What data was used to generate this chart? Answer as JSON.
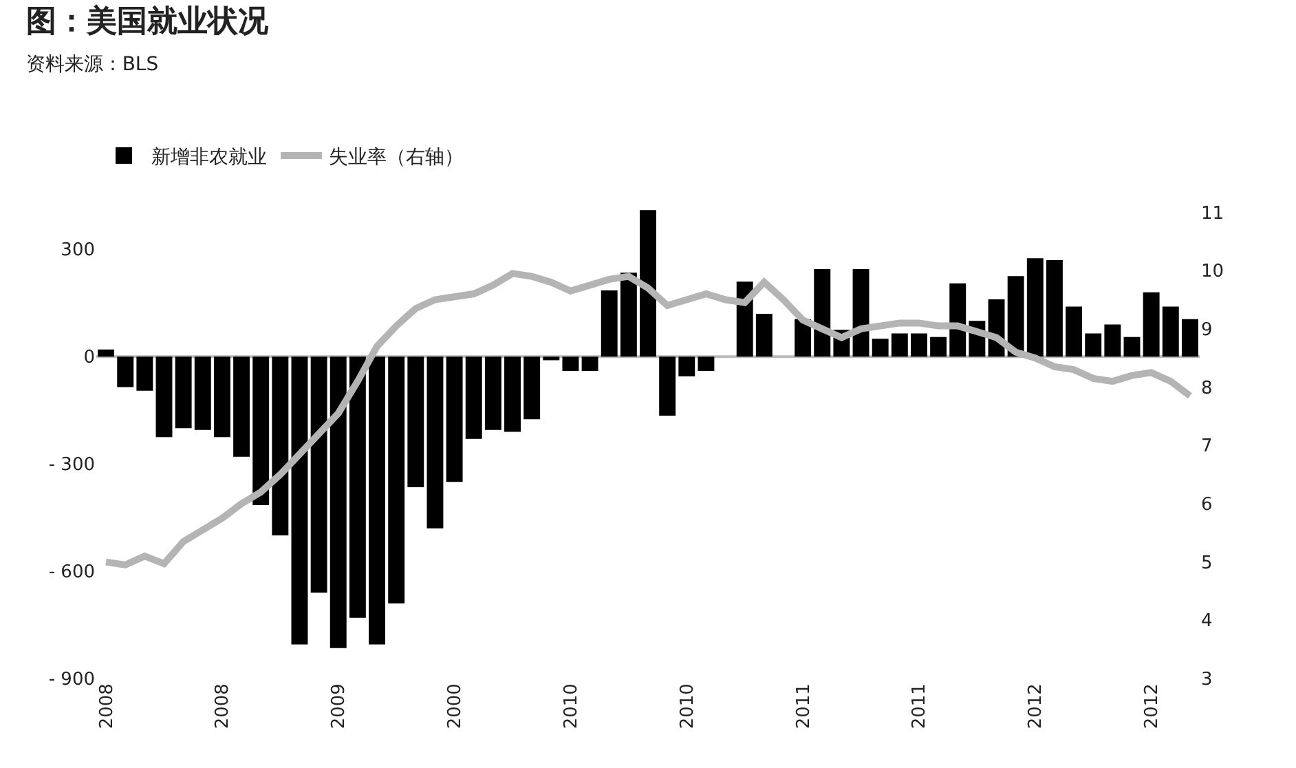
{
  "chart_data": {
    "type": "bar",
    "title": "图：美国就业状况",
    "subtitle": "资料来源：BLS",
    "categories": [
      "2008",
      null,
      null,
      null,
      null,
      null,
      "2008",
      null,
      null,
      null,
      null,
      null,
      "2009",
      null,
      null,
      null,
      null,
      null,
      "2000",
      null,
      null,
      null,
      null,
      null,
      "2010",
      null,
      null,
      null,
      null,
      null,
      "2010",
      null,
      null,
      null,
      null,
      null,
      "2011",
      null,
      null,
      null,
      null,
      null,
      "2011",
      null,
      null,
      null,
      null,
      null,
      "2012",
      null,
      null,
      null,
      null,
      null,
      "2012",
      null,
      null
    ],
    "series": [
      {
        "name": "新增非农就业",
        "color": "#000000",
        "values": [
          20,
          -85,
          -95,
          -225,
          -200,
          -205,
          -225,
          -280,
          -415,
          -500,
          -805,
          -660,
          -815,
          -730,
          -805,
          -690,
          -365,
          -480,
          -350,
          -230,
          -205,
          -210,
          -175,
          -10,
          -40,
          -40,
          185,
          235,
          410,
          -165,
          -55,
          -40,
          0,
          210,
          120,
          0,
          105,
          245,
          75,
          245,
          50,
          65,
          65,
          55,
          205,
          100,
          160,
          225,
          275,
          270,
          140,
          65,
          90,
          55,
          180,
          140,
          105
        ]
      },
      {
        "name": "失业率（右轴）",
        "type": "line",
        "axis": "y2",
        "color": "#b4b4b4",
        "values": [
          5.0,
          4.95,
          5.1,
          4.97,
          5.35,
          5.55,
          5.75,
          6.0,
          6.2,
          6.5,
          6.85,
          7.2,
          7.55,
          8.1,
          8.7,
          9.05,
          9.35,
          9.5,
          9.55,
          9.6,
          9.75,
          9.95,
          9.9,
          9.8,
          9.65,
          9.75,
          9.85,
          9.9,
          9.7,
          9.4,
          9.5,
          9.6,
          9.5,
          9.45,
          9.8,
          9.5,
          9.15,
          9.0,
          8.85,
          9.0,
          9.05,
          9.1,
          9.1,
          9.05,
          9.05,
          8.95,
          8.85,
          8.6,
          8.5,
          8.35,
          8.3,
          8.15,
          8.1,
          8.2,
          8.25,
          8.1,
          7.85
        ]
      }
    ],
    "ylim": [
      -900,
      420
    ],
    "ref_lines": [
      {
        "axis": "y",
        "value": 0,
        "color": "#bbbbbb"
      }
    ],
    "yticks": [
      300,
      0,
      {
        "value": -300,
        "label": "- 300"
      },
      {
        "value": -600,
        "label": "- 600"
      },
      {
        "value": -900,
        "label": "- 900"
      }
    ],
    "y2lim": [
      3,
      11.1
    ],
    "y2ticks": [
      3,
      4,
      5,
      6,
      7,
      8,
      9,
      10,
      11
    ],
    "legend": "top left",
    "grid": false,
    "marker": "none",
    "line_style": "solid"
  }
}
